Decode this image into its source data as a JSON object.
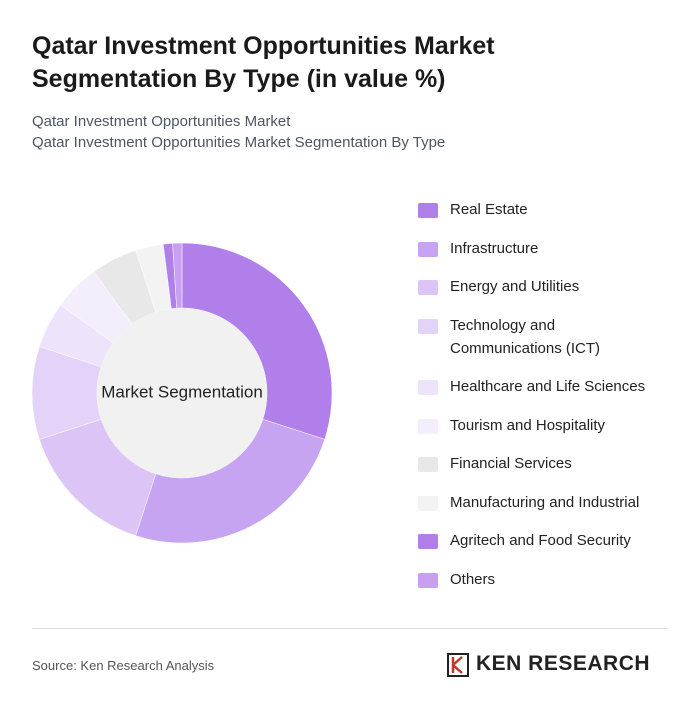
{
  "chart_data": {
    "type": "donut",
    "title": "Qatar Investment Opportunities Market Segmentation By Type (in value %)",
    "subtitle": [
      "Qatar Investment Opportunities Market",
      "Qatar Investment Opportunities Market Segmentation By Type"
    ],
    "center_label": "Market Segmentation",
    "categories": [
      "Real Estate",
      "Infrastructure",
      "Energy and Utilities",
      "Technology and Communications (ICT)",
      "Healthcare and Life Sciences",
      "Tourism and Hospitality",
      "Financial Services",
      "Manufacturing and Industrial",
      "Agritech and Food Security",
      "Others"
    ],
    "values": [
      30,
      25,
      15,
      10,
      5,
      5,
      5,
      3,
      1,
      1
    ],
    "colors": [
      "#b07fe9",
      "#c7a4f1",
      "#dcc5f6",
      "#e4d3f8",
      "#ede3fa",
      "#f4eefc",
      "#e8e8e8",
      "#f3f3f3",
      "#b07fe9",
      "#c9a0f1"
    ],
    "source": "Source: Ken Research Analysis",
    "brand": "KEN RESEARCH"
  }
}
